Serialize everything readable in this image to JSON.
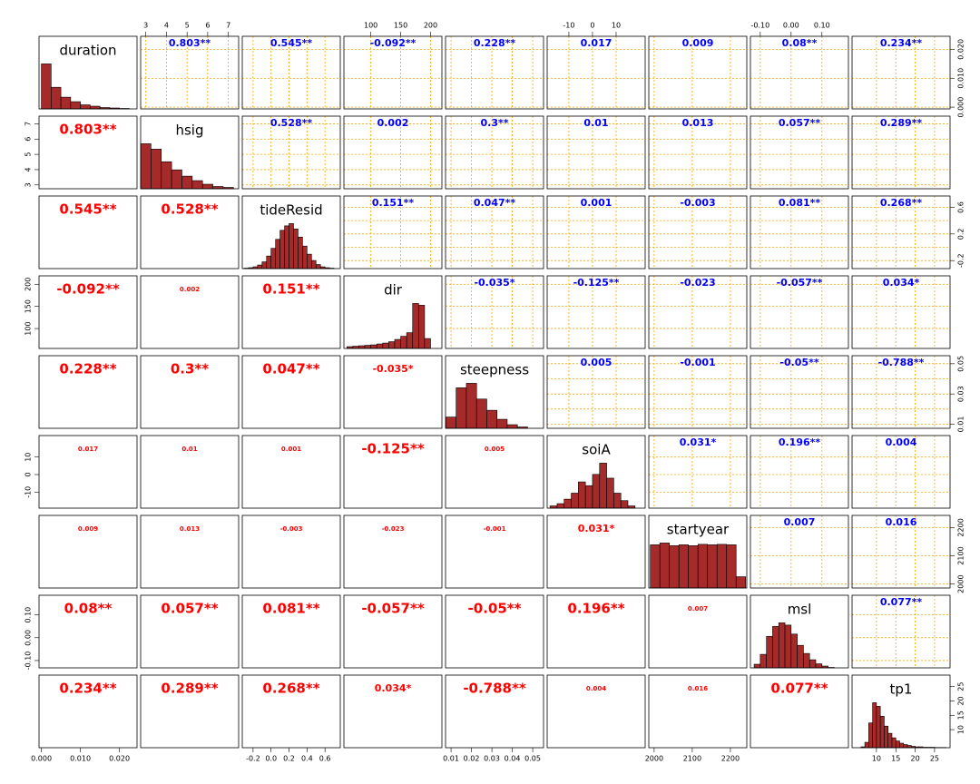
{
  "chart_data": {
    "type": "pairs",
    "grid": true,
    "hist_color": "#a52a2a",
    "upper_color": "#0000ff",
    "lower_color": "#ff0000",
    "grid_color": "#ffa500",
    "variables": [
      {
        "name": "duration",
        "lim": [
          -0.0006,
          0.0245
        ],
        "xticks": [
          {
            "value": 0,
            "label": "0.000"
          },
          {
            "value": 0.01,
            "label": "0.010"
          },
          {
            "value": 0.02,
            "label": "0.020"
          }
        ],
        "yticks": [
          {
            "value": 0,
            "label": "0.000"
          },
          {
            "value": 0.01,
            "label": "0.010"
          },
          {
            "value": 0.02,
            "label": "0.020"
          }
        ],
        "bins": [
          0,
          0.0025,
          0.005,
          0.0075,
          0.01,
          0.0125,
          0.015,
          0.0175,
          0.02,
          0.0225
        ],
        "counts": [
          100,
          48,
          26,
          16,
          9,
          6,
          3,
          2,
          1
        ]
      },
      {
        "name": "hsig",
        "lim": [
          2.75,
          7.5
        ],
        "xticks": [
          3,
          4,
          5,
          6,
          7
        ],
        "yticks": [
          3,
          4,
          5,
          6,
          7
        ],
        "bins": [
          2.75,
          3.25,
          3.75,
          4.25,
          4.75,
          5.25,
          5.75,
          6.25,
          6.75,
          7.25
        ],
        "counts": [
          100,
          88,
          60,
          42,
          28,
          18,
          10,
          5,
          3
        ]
      },
      {
        "name": "tideResid",
        "lim": [
          -0.32,
          0.77
        ],
        "xticks": [
          -0.2,
          {
            "value": 0,
            "label": "0.0"
          },
          0.2,
          0.4,
          0.6
        ],
        "yticks": [
          -0.2,
          0.2,
          0.6
        ],
        "bins": [
          -0.3,
          -0.25,
          -0.2,
          -0.15,
          -0.1,
          -0.05,
          0,
          0.05,
          0.1,
          0.15,
          0.2,
          0.25,
          0.3,
          0.35,
          0.4,
          0.45,
          0.5,
          0.55,
          0.6,
          0.65,
          0.7
        ],
        "counts": [
          1,
          2,
          4,
          8,
          15,
          28,
          45,
          65,
          85,
          95,
          100,
          88,
          70,
          50,
          32,
          18,
          9,
          4,
          2,
          1
        ]
      },
      {
        "name": "dir",
        "lim": [
          55,
          219
        ],
        "xticks": [
          100,
          150,
          200
        ],
        "yticks": [
          100,
          150,
          200
        ],
        "bins": [
          60,
          70,
          80,
          90,
          100,
          110,
          120,
          130,
          140,
          150,
          160,
          170,
          180,
          190,
          200
        ],
        "counts": [
          4,
          5,
          6,
          7,
          8,
          10,
          12,
          15,
          20,
          27,
          35,
          100,
          96,
          22
        ]
      },
      {
        "name": "steepness",
        "lim": [
          0.0073,
          0.0553
        ],
        "xticks": [
          0.01,
          0.02,
          0.03,
          0.04,
          0.05
        ],
        "yticks": [
          0.01,
          0.03,
          0.05
        ],
        "bins": [
          0.0075,
          0.0125,
          0.0175,
          0.0225,
          0.0275,
          0.0325,
          0.0375,
          0.0425,
          0.0475
        ],
        "counts": [
          25,
          90,
          100,
          65,
          40,
          20,
          8,
          3
        ]
      },
      {
        "name": "soiA",
        "lim": [
          -19.2,
          22.3
        ],
        "xticks": [
          -10,
          0,
          10
        ],
        "yticks": [
          -10,
          0,
          10
        ],
        "bins": [
          -18,
          -15,
          -12,
          -9,
          -6,
          -3,
          0,
          3,
          6,
          9,
          12,
          15,
          18
        ],
        "counts": [
          3,
          6,
          12,
          20,
          35,
          30,
          45,
          60,
          40,
          20,
          10,
          3
        ]
      },
      {
        "name": "startyear",
        "lim": [
          1986,
          2243
        ],
        "xticks": [
          2000,
          2100,
          2200
        ],
        "yticks": [
          2000,
          2100,
          2200
        ],
        "bins": [
          1990,
          2015,
          2040,
          2065,
          2090,
          2115,
          2140,
          2165,
          2190,
          2215,
          2240
        ],
        "counts": [
          96,
          100,
          94,
          96,
          94,
          97,
          96,
          97,
          96,
          25
        ]
      },
      {
        "name": "msl",
        "lim": [
          -0.132,
          0.186
        ],
        "xticks": [
          {
            "value": -0.1,
            "label": "-0.10"
          },
          {
            "value": 0,
            "label": "0.00"
          },
          {
            "value": 0.1,
            "label": "0.10"
          }
        ],
        "yticks": [
          {
            "value": -0.1,
            "label": "-0.10"
          },
          {
            "value": 0,
            "label": "0.00"
          },
          {
            "value": 0.1,
            "label": "0.10"
          }
        ],
        "bins": [
          -0.12,
          -0.1,
          -0.08,
          -0.06,
          -0.04,
          -0.02,
          0,
          0.02,
          0.04,
          0.06,
          0.08,
          0.1,
          0.12,
          0.14
        ],
        "counts": [
          8,
          30,
          70,
          92,
          100,
          95,
          75,
          50,
          32,
          18,
          9,
          4,
          1
        ]
      },
      {
        "name": "tp1",
        "lim": [
          3.7,
          29
        ],
        "xticks": [
          10,
          15,
          20,
          25
        ],
        "yticks": [
          10,
          15,
          20,
          25
        ],
        "bins": [
          6,
          7,
          8,
          9,
          10,
          11,
          12,
          13,
          14,
          15,
          16,
          17,
          18,
          19,
          20,
          21,
          22,
          23,
          24,
          25,
          26,
          27,
          28
        ],
        "counts": [
          2,
          12,
          55,
          100,
          92,
          70,
          48,
          32,
          22,
          15,
          10,
          7,
          5,
          3,
          2,
          2,
          1,
          1,
          1,
          0.5,
          0.5,
          0.5
        ]
      }
    ],
    "correlations": [
      {
        "value": 0.803,
        "label": "0.803**"
      },
      {
        "value": 0.545,
        "label": "0.545**"
      },
      {
        "value": -0.092,
        "label": "-0.092**"
      },
      {
        "value": 0.228,
        "label": "0.228**"
      },
      {
        "value": 0.017,
        "label": "0.017"
      },
      {
        "value": 0.009,
        "label": "0.009"
      },
      {
        "value": 0.08,
        "label": "0.08**"
      },
      {
        "value": 0.234,
        "label": "0.234**"
      },
      {
        "value": 0.528,
        "label": "0.528**"
      },
      {
        "value": 0.002,
        "label": "0.002"
      },
      {
        "value": 0.3,
        "label": "0.3**"
      },
      {
        "value": 0.01,
        "label": "0.01"
      },
      {
        "value": 0.013,
        "label": "0.013"
      },
      {
        "value": 0.057,
        "label": "0.057**"
      },
      {
        "value": 0.289,
        "label": "0.289**"
      },
      {
        "value": 0.151,
        "label": "0.151**"
      },
      {
        "value": 0.047,
        "label": "0.047**"
      },
      {
        "value": 0.001,
        "label": "0.001"
      },
      {
        "value": -0.003,
        "label": "-0.003"
      },
      {
        "value": 0.081,
        "label": "0.081**"
      },
      {
        "value": 0.268,
        "label": "0.268**"
      },
      {
        "value": -0.035,
        "label": "-0.035*"
      },
      {
        "value": -0.125,
        "label": "-0.125**"
      },
      {
        "value": -0.023,
        "label": "-0.023"
      },
      {
        "value": -0.057,
        "label": "-0.057**"
      },
      {
        "value": 0.034,
        "label": "0.034*"
      },
      {
        "value": 0.005,
        "label": "0.005"
      },
      {
        "value": -0.001,
        "label": "-0.001"
      },
      {
        "value": -0.05,
        "label": "-0.05**"
      },
      {
        "value": -0.788,
        "label": "-0.788**"
      },
      {
        "value": 0.031,
        "label": "0.031*"
      },
      {
        "value": 0.196,
        "label": "0.196**"
      },
      {
        "value": 0.004,
        "label": "0.004"
      },
      {
        "value": 0.007,
        "label": "0.007"
      },
      {
        "value": 0.016,
        "label": "0.016"
      },
      {
        "value": 0.077,
        "label": "0.077**"
      }
    ]
  }
}
